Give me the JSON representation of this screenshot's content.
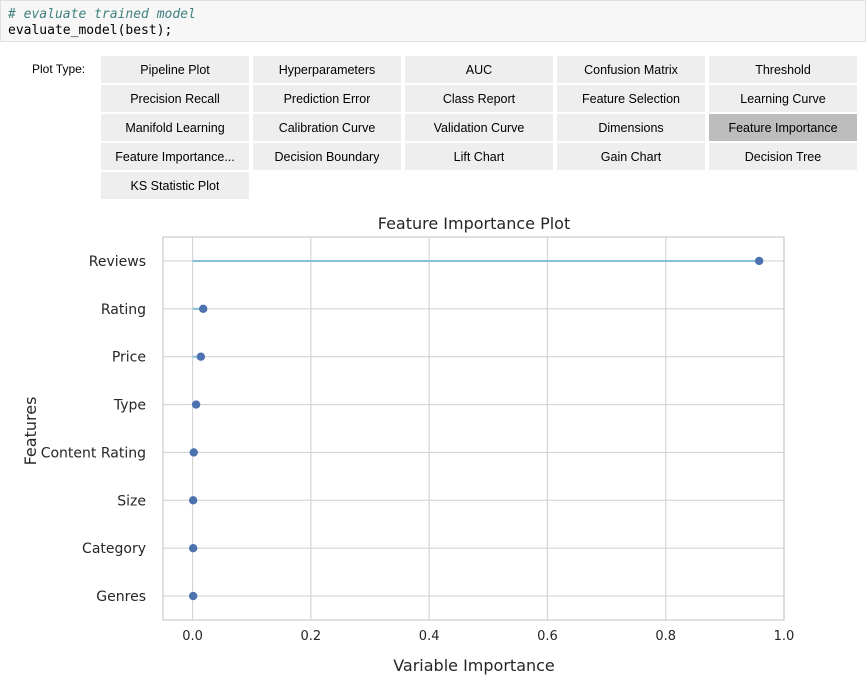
{
  "code_cell": {
    "comment": "# evaluate trained model",
    "code": "evaluate_model(best);"
  },
  "plot_type_label": "Plot Type:",
  "plot_type_options": [
    {
      "label": "Pipeline Plot",
      "active": false
    },
    {
      "label": "Hyperparameters",
      "active": false
    },
    {
      "label": "AUC",
      "active": false
    },
    {
      "label": "Confusion Matrix",
      "active": false
    },
    {
      "label": "Threshold",
      "active": false
    },
    {
      "label": "Precision Recall",
      "active": false
    },
    {
      "label": "Prediction Error",
      "active": false
    },
    {
      "label": "Class Report",
      "active": false
    },
    {
      "label": "Feature Selection",
      "active": false
    },
    {
      "label": "Learning Curve",
      "active": false
    },
    {
      "label": "Manifold Learning",
      "active": false
    },
    {
      "label": "Calibration Curve",
      "active": false
    },
    {
      "label": "Validation Curve",
      "active": false
    },
    {
      "label": "Dimensions",
      "active": false
    },
    {
      "label": "Feature Importance",
      "active": true
    },
    {
      "label": "Feature Importance...",
      "active": false
    },
    {
      "label": "Decision Boundary",
      "active": false
    },
    {
      "label": "Lift Chart",
      "active": false
    },
    {
      "label": "Gain Chart",
      "active": false
    },
    {
      "label": "Decision Tree",
      "active": false
    },
    {
      "label": "KS Statistic Plot",
      "active": false
    }
  ],
  "chart_data": {
    "type": "scatter",
    "subtype": "lollipop",
    "title": "Feature Importance Plot",
    "xlabel": "Variable Importance",
    "ylabel": "Features",
    "xlim": [
      -0.05,
      1.0
    ],
    "xticks": [
      0.0,
      0.2,
      0.4,
      0.6,
      0.8,
      1.0
    ],
    "xtick_labels": [
      "0.0",
      "0.2",
      "0.4",
      "0.6",
      "0.8",
      "1.0"
    ],
    "grid": true,
    "categories": [
      "Reviews",
      "Rating",
      "Price",
      "Type",
      "Content Rating",
      "Size",
      "Category",
      "Genres"
    ],
    "values": [
      0.958,
      0.018,
      0.014,
      0.006,
      0.002,
      0.001,
      0.001,
      0.001
    ],
    "line_color": "#87bfd8",
    "marker_color": "#4c72b0",
    "grid_color": "#d5d5d5"
  }
}
